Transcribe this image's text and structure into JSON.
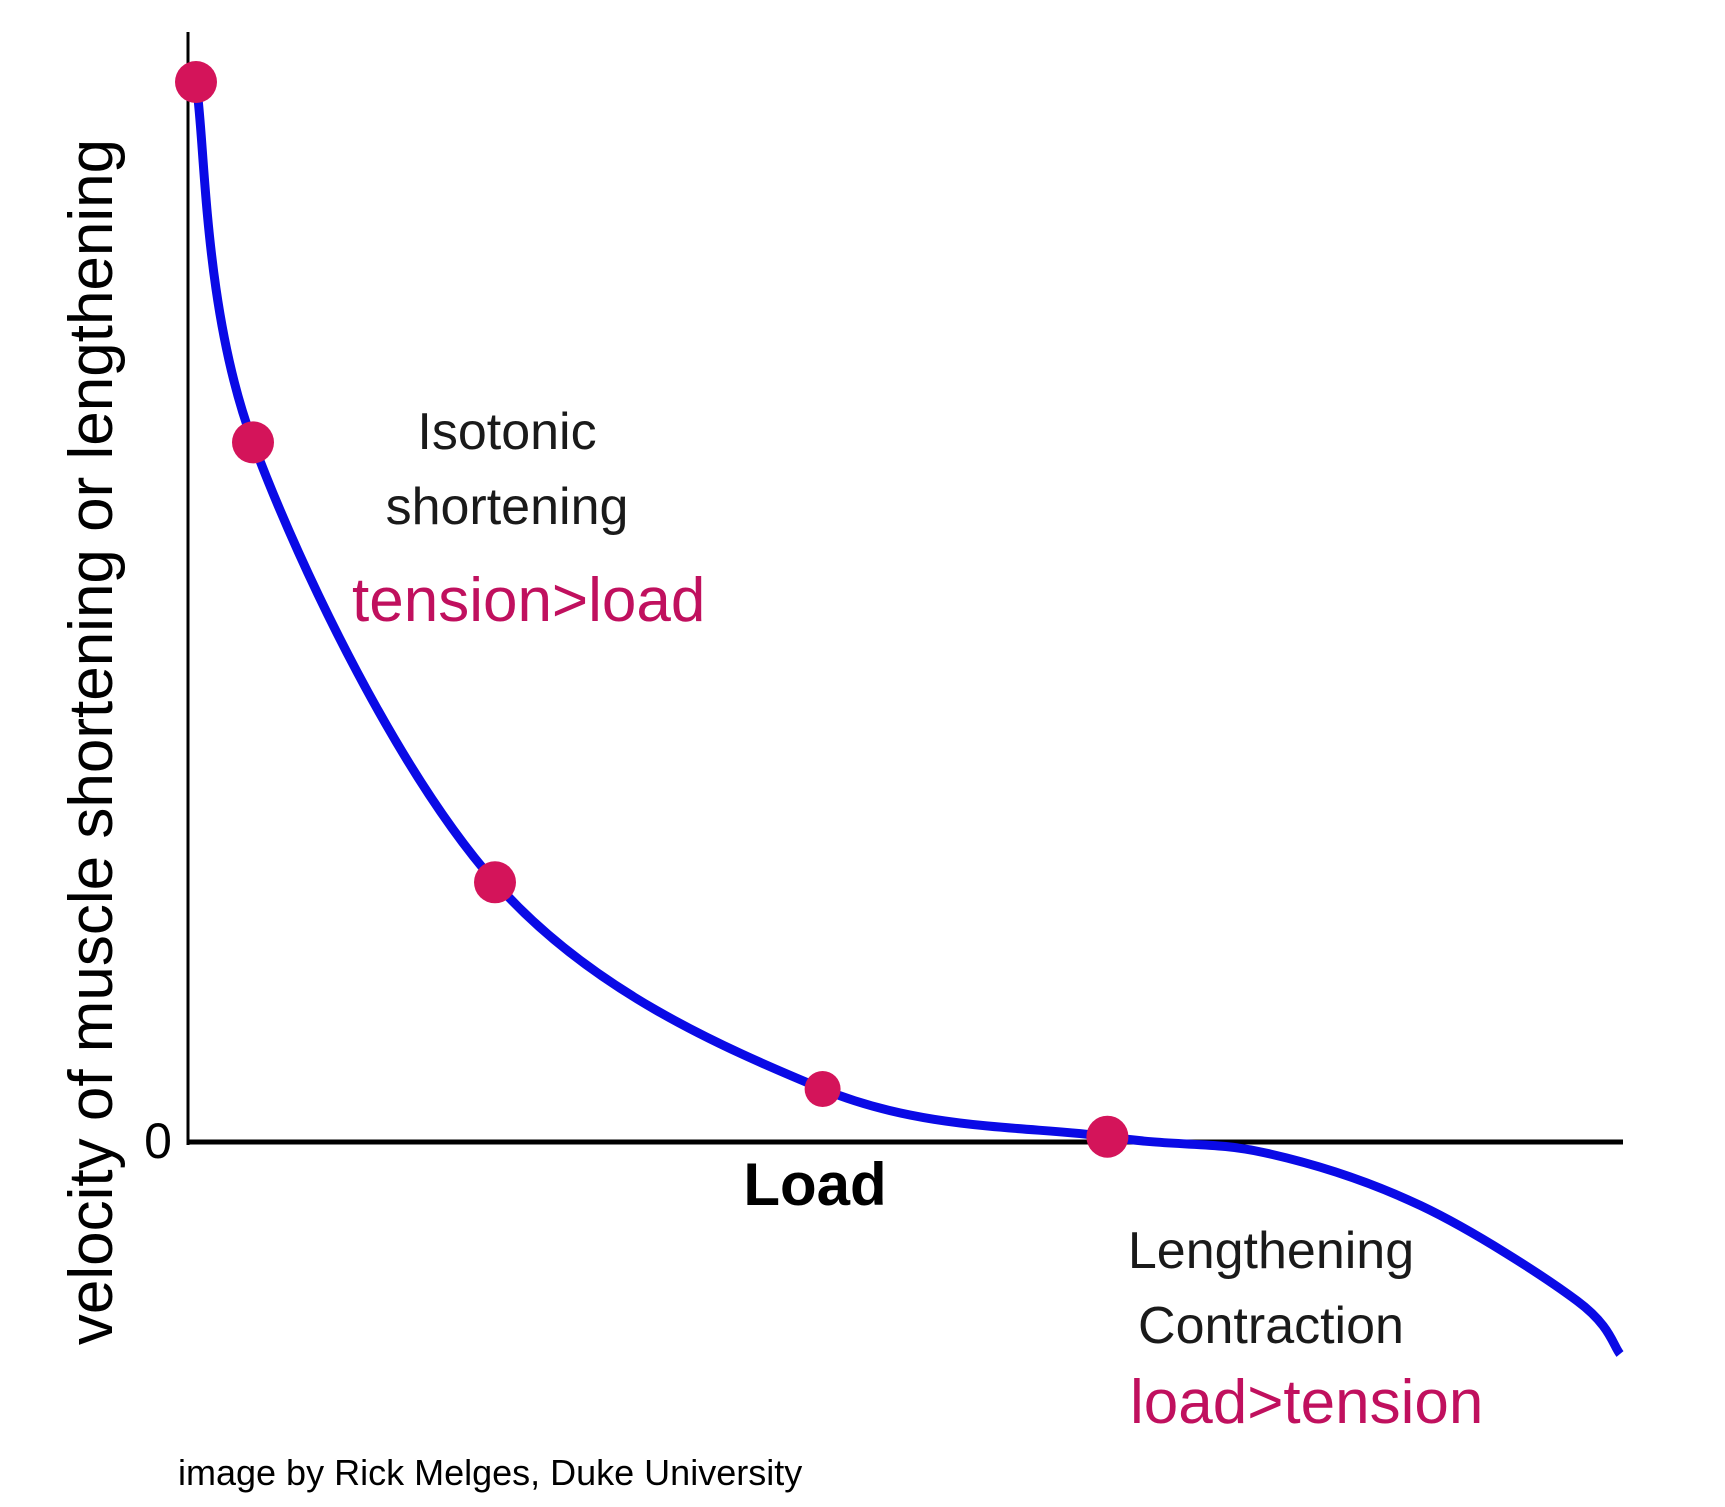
{
  "chart_data": {
    "type": "line",
    "title": "",
    "xlabel": "Load",
    "ylabel": "velocity of muscle shortening or lengthening",
    "y_tick_labels": [
      "0"
    ],
    "x": [
      0,
      0.04,
      0.21,
      0.44,
      0.64,
      0.75,
      0.86,
      0.97,
      1.0
    ],
    "series": [
      {
        "values": [
          1.0,
          0.66,
          0.245,
          0.05,
          0.005,
          -0.01,
          -0.06,
          -0.15,
          -0.2
        ],
        "color": "#0a0ae6"
      }
    ],
    "points": {
      "x": [
        0,
        0.04,
        0.21,
        0.44,
        0.64
      ],
      "y": [
        1.0,
        0.66,
        0.245,
        0.05,
        0.005
      ],
      "color": "#d4145a"
    },
    "xlim": [
      0,
      1
    ],
    "ylim": [
      -0.3,
      1.05
    ],
    "grid": false,
    "annotations": [
      {
        "lines": [
          "Isotonic",
          "shortening"
        ],
        "accent": "tension>load"
      },
      {
        "lines": [
          "Lengthening",
          "Contraction"
        ],
        "accent": "load>tension"
      }
    ],
    "colors": {
      "curve": "#0a0ae6",
      "points": "#d4145a",
      "accent_text": "#c0105e",
      "axes": "#000000"
    }
  },
  "credit": "image by Rick Melges, Duke University"
}
